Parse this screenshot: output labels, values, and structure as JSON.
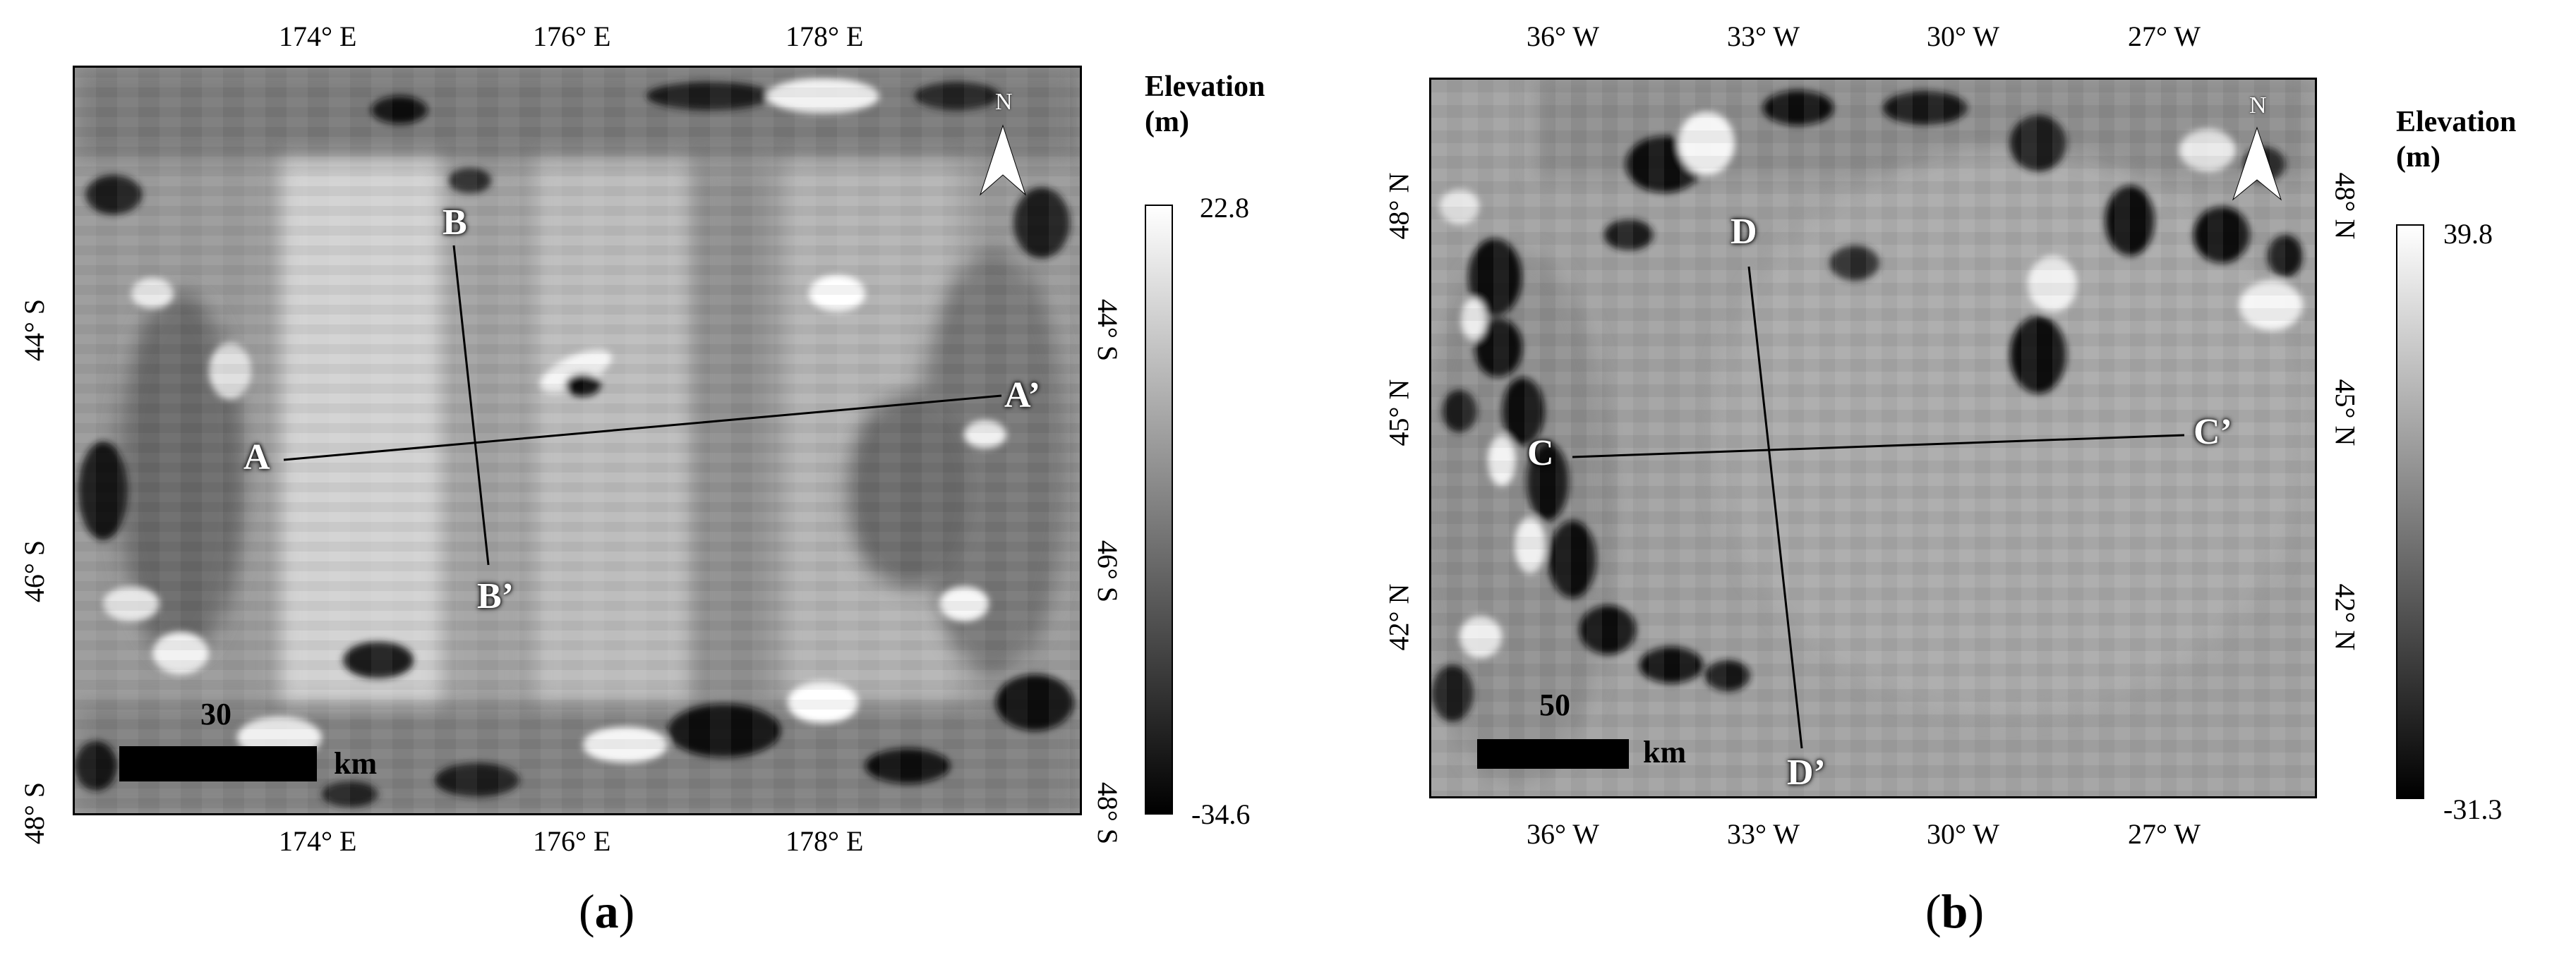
{
  "panel_a": {
    "top_ticks": [
      "174° E",
      "176° E",
      "178° E"
    ],
    "bottom_ticks": [
      "174° E",
      "176° E",
      "178° E"
    ],
    "left_ticks": [
      "44° S",
      "46° S",
      "48° S"
    ],
    "right_ticks": [
      "44° S",
      "46° S",
      "48° S"
    ],
    "colorbar": {
      "title_line1": "Elevation",
      "title_line2": "(m)",
      "max": "22.8",
      "min": "-34.6"
    },
    "profile_labels": {
      "a": "A",
      "a_prime": "A’",
      "b": "B",
      "b_prime": "B’"
    },
    "scale": {
      "value": "30",
      "unit": "km"
    },
    "north": "N",
    "caption_open": "(",
    "caption_letter": "a",
    "caption_close": ")"
  },
  "panel_b": {
    "top_ticks": [
      "36° W",
      "33° W",
      "30° W",
      "27° W"
    ],
    "bottom_ticks": [
      "36° W",
      "33° W",
      "30° W",
      "27° W"
    ],
    "left_ticks": [
      "48° N",
      "45° N",
      "42° N"
    ],
    "right_ticks": [
      "48° N",
      "45° N",
      "42° N"
    ],
    "colorbar": {
      "title_line1": "Elevation",
      "title_line2": "(m)",
      "max": "39.8",
      "min": "-31.3"
    },
    "profile_labels": {
      "c": "C",
      "c_prime": "C’",
      "d": "D",
      "d_prime": "D’"
    },
    "scale": {
      "value": "50",
      "unit": "km"
    },
    "north": "N",
    "caption_open": "(",
    "caption_letter": "b",
    "caption_close": ")"
  }
}
